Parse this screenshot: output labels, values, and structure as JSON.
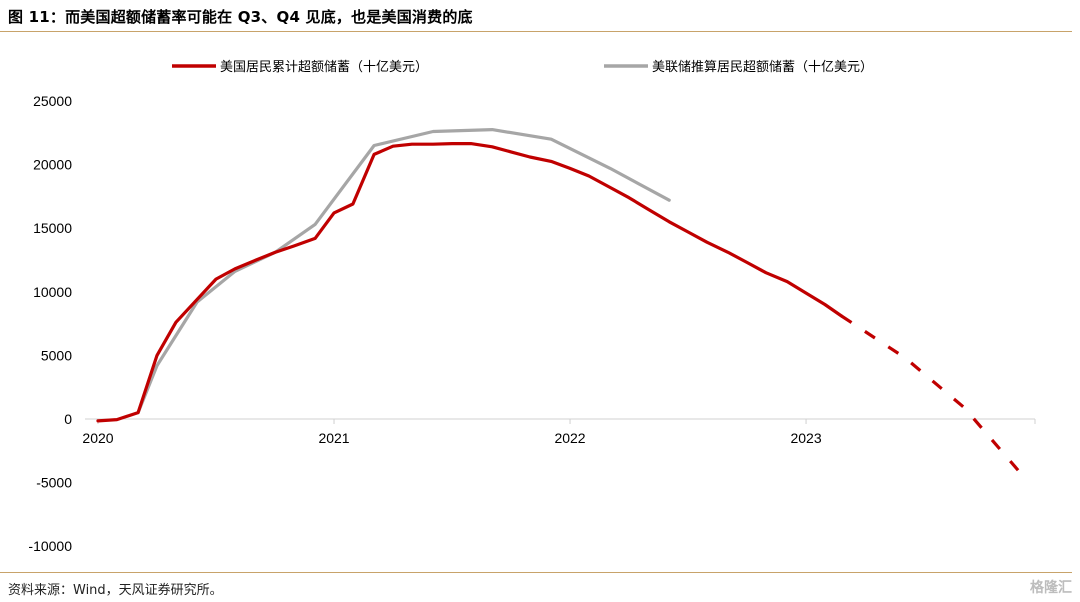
{
  "title": "图 11：而美国超额储蓄率可能在 Q3、Q4 见底，也是美国消费的底",
  "source": "资料来源：Wind，天风证券研究所。",
  "watermark": "格隆汇",
  "colors": {
    "red": "#c00000",
    "gray": "#a6a6a6",
    "rule": "#c8a36a"
  },
  "chart_data": {
    "type": "line",
    "title": "",
    "xlabel": "",
    "ylabel": "",
    "ylim": [
      -10000,
      25000
    ],
    "yticks": [
      25000,
      20000,
      15000,
      10000,
      5000,
      0,
      -5000,
      -10000
    ],
    "xlim": [
      2020.0,
      2023.97
    ],
    "xticks": [
      {
        "label": "2020",
        "x": 2020.0
      },
      {
        "label": "2021",
        "x": 2021.0
      },
      {
        "label": "2022",
        "x": 2022.0
      },
      {
        "label": "2023",
        "x": 2023.0
      }
    ],
    "legend_position": "top",
    "series": [
      {
        "name": "美国居民累计超额储蓄（十亿美元）",
        "color": "#c00000",
        "style": "solid",
        "points": [
          [
            2020.0,
            -150
          ],
          [
            2020.08,
            -50
          ],
          [
            2020.17,
            500
          ],
          [
            2020.25,
            5000
          ],
          [
            2020.33,
            7600
          ],
          [
            2020.42,
            9400
          ],
          [
            2020.5,
            11000
          ],
          [
            2020.58,
            11800
          ],
          [
            2020.67,
            12500
          ],
          [
            2020.75,
            13100
          ],
          [
            2020.83,
            13600
          ],
          [
            2020.92,
            14200
          ],
          [
            2021.0,
            16200
          ],
          [
            2021.08,
            16900
          ],
          [
            2021.17,
            20800
          ],
          [
            2021.25,
            21450
          ],
          [
            2021.33,
            21600
          ],
          [
            2021.42,
            21600
          ],
          [
            2021.5,
            21650
          ],
          [
            2021.58,
            21650
          ],
          [
            2021.67,
            21400
          ],
          [
            2021.75,
            21000
          ],
          [
            2021.83,
            20600
          ],
          [
            2021.92,
            20250
          ],
          [
            2022.0,
            19700
          ],
          [
            2022.08,
            19100
          ],
          [
            2022.17,
            18200
          ],
          [
            2022.25,
            17400
          ],
          [
            2022.33,
            16500
          ],
          [
            2022.42,
            15500
          ],
          [
            2022.5,
            14700
          ],
          [
            2022.58,
            13900
          ],
          [
            2022.67,
            13100
          ],
          [
            2022.75,
            12300
          ],
          [
            2022.83,
            11500
          ],
          [
            2022.92,
            10800
          ],
          [
            2023.0,
            9900
          ],
          [
            2023.08,
            9000
          ],
          [
            2023.15,
            8100
          ]
        ]
      },
      {
        "name": "",
        "color": "#c00000",
        "style": "dashed",
        "points": [
          [
            2023.15,
            8100
          ],
          [
            2023.42,
            4800
          ],
          [
            2023.67,
            900
          ],
          [
            2023.92,
            -4500
          ]
        ]
      },
      {
        "name": "美联储推算居民超额储蓄（十亿美元）",
        "color": "#a6a6a6",
        "style": "solid",
        "points": [
          [
            2020.17,
            500
          ],
          [
            2020.25,
            4200
          ],
          [
            2020.42,
            9200
          ],
          [
            2020.58,
            11600
          ],
          [
            2020.75,
            13100
          ],
          [
            2020.92,
            15300
          ],
          [
            2021.17,
            21500
          ],
          [
            2021.42,
            22600
          ],
          [
            2021.67,
            22750
          ],
          [
            2021.92,
            22000
          ],
          [
            2022.17,
            19700
          ],
          [
            2022.42,
            17200
          ]
        ]
      }
    ]
  }
}
